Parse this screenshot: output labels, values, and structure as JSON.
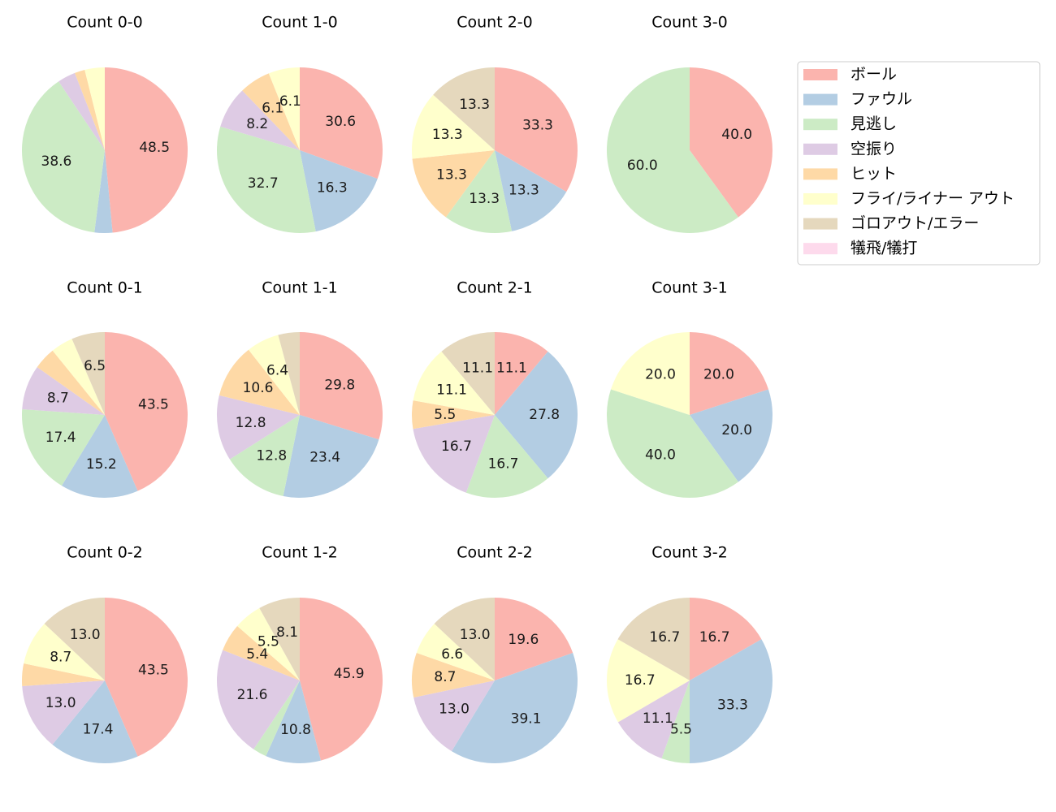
{
  "chart_data": {
    "type": "pie",
    "start_angle_deg": 90,
    "direction": "clockwise",
    "label_min_percent": 5,
    "legend": {
      "placement": "top-right",
      "entries": [
        {
          "name": "ボール",
          "color": "#fbb4ae"
        },
        {
          "name": "ファウル",
          "color": "#b3cde3"
        },
        {
          "name": "見逃し",
          "color": "#ccebc5"
        },
        {
          "name": "空振り",
          "color": "#decbe4"
        },
        {
          "name": "ヒット",
          "color": "#fed9a6"
        },
        {
          "name": "フライ/ライナー アウト",
          "color": "#ffffcc"
        },
        {
          "name": "ゴロアウト/エラー",
          "color": "#e5d8bd"
        },
        {
          "name": "犠飛/犠打",
          "color": "#fddaec"
        }
      ]
    },
    "charts": [
      {
        "title": "Count 0-0",
        "values": [
          48.5,
          3.5,
          38.6,
          3.5,
          2.0,
          3.9,
          0,
          0
        ]
      },
      {
        "title": "Count 1-0",
        "values": [
          30.6,
          16.3,
          32.7,
          8.2,
          6.1,
          6.1,
          0,
          0
        ]
      },
      {
        "title": "Count 2-0",
        "values": [
          33.3,
          13.3,
          13.3,
          0,
          13.3,
          13.3,
          13.3,
          0
        ]
      },
      {
        "title": "Count 3-0",
        "values": [
          40.0,
          0,
          60.0,
          0,
          0,
          0,
          0,
          0
        ]
      },
      {
        "title": "Count 0-1",
        "values": [
          43.5,
          15.2,
          17.4,
          8.7,
          4.35,
          4.35,
          6.5,
          0
        ]
      },
      {
        "title": "Count 1-1",
        "values": [
          29.8,
          23.4,
          12.8,
          12.8,
          10.6,
          6.4,
          4.2,
          0
        ]
      },
      {
        "title": "Count 2-1",
        "values": [
          11.1,
          27.8,
          16.7,
          16.7,
          5.5,
          11.1,
          11.1,
          0
        ]
      },
      {
        "title": "Count 3-1",
        "values": [
          20.0,
          20.0,
          40.0,
          0,
          0,
          20.0,
          0,
          0
        ]
      },
      {
        "title": "Count 0-2",
        "values": [
          43.5,
          17.4,
          0,
          13.0,
          4.4,
          8.7,
          13.0,
          0
        ]
      },
      {
        "title": "Count 1-2",
        "values": [
          45.9,
          10.8,
          2.7,
          21.6,
          5.4,
          5.5,
          8.1,
          0
        ]
      },
      {
        "title": "Count 2-2",
        "values": [
          19.6,
          39.1,
          0,
          13.0,
          8.7,
          6.6,
          13.0,
          0
        ]
      },
      {
        "title": "Count 3-2",
        "values": [
          16.7,
          33.3,
          5.5,
          11.1,
          0,
          16.7,
          16.7,
          0
        ]
      }
    ]
  }
}
